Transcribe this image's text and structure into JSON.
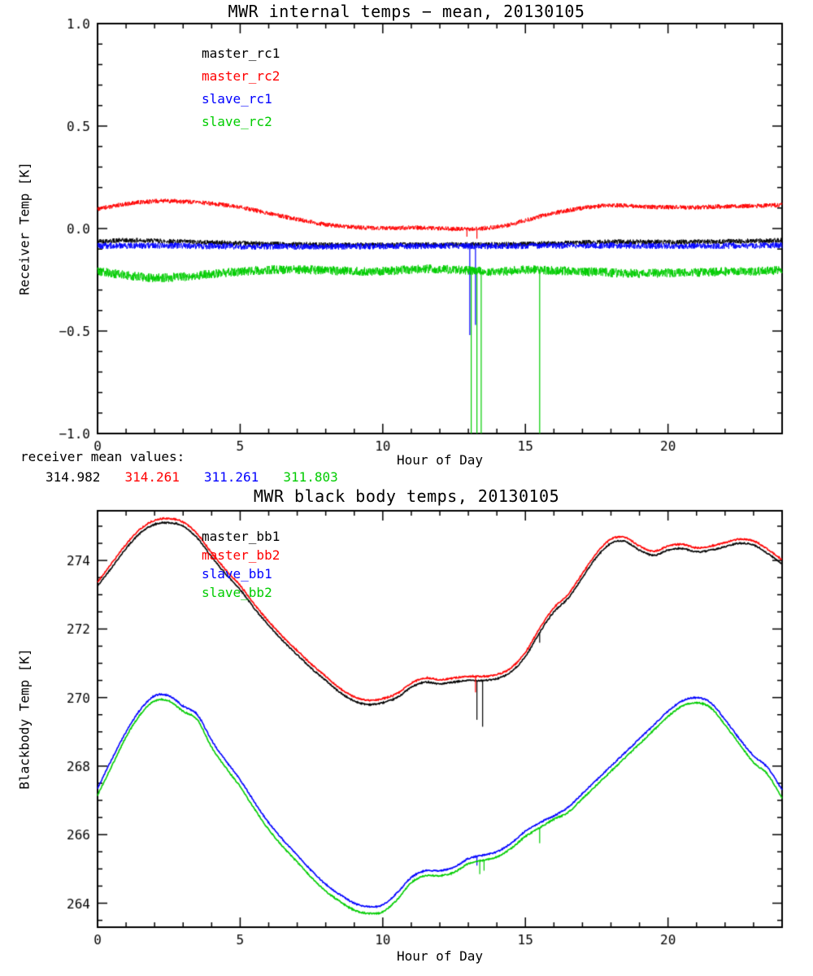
{
  "figure": {
    "background": "#ffffff",
    "axis_color": "#000000"
  },
  "mean_values": {
    "label": "receiver mean values:",
    "items": [
      {
        "value": "314.982",
        "color": "#000000"
      },
      {
        "value": "314.261",
        "color": "#ff0000"
      },
      {
        "value": "311.261",
        "color": "#0000ff"
      },
      {
        "value": "311.803",
        "color": "#00cc00"
      }
    ]
  },
  "chart_data": [
    {
      "type": "line",
      "title": "MWR internal temps − mean, 20130105",
      "xlabel": "Hour of Day",
      "ylabel": "Receiver Temp [K]",
      "xlim": [
        0,
        24
      ],
      "ylim": [
        -1.0,
        1.0
      ],
      "grid": false,
      "legend_position": "upper-left-inside",
      "xticks": {
        "major": [
          0,
          5,
          10,
          15,
          20
        ],
        "labels": [
          "0",
          "5",
          "10",
          "15",
          "20"
        ],
        "minor_step": 1
      },
      "yticks": {
        "major": [
          -1.0,
          -0.5,
          0.0,
          0.5,
          1.0
        ],
        "labels": [
          "−1.0",
          "−0.5",
          "0.0",
          "0.5",
          "1.0"
        ],
        "minor_step": 0.1
      },
      "series": [
        {
          "name": "master_rc1",
          "color": "#000000",
          "width": 1,
          "noise": 0.012,
          "step": 0.01,
          "x": [
            0,
            1,
            2,
            4,
            6,
            9,
            12,
            14,
            16,
            18,
            20,
            22,
            24
          ],
          "y": [
            -0.062,
            -0.058,
            -0.06,
            -0.068,
            -0.075,
            -0.08,
            -0.078,
            -0.078,
            -0.072,
            -0.065,
            -0.066,
            -0.063,
            -0.058
          ],
          "spikes": []
        },
        {
          "name": "master_rc2",
          "color": "#ff0000",
          "width": 1,
          "noise": 0.011,
          "step": 0.01,
          "x": [
            0,
            1,
            2,
            3,
            4,
            5,
            6,
            7,
            8,
            9,
            10,
            11,
            12,
            13,
            13.8,
            14.5,
            15,
            16,
            17,
            17.5,
            18,
            19,
            20,
            21,
            22,
            23,
            24
          ],
          "y": [
            0.095,
            0.12,
            0.133,
            0.132,
            0.122,
            0.103,
            0.075,
            0.045,
            0.02,
            0.007,
            0.002,
            0.004,
            0.0,
            -0.003,
            0.005,
            0.02,
            0.04,
            0.075,
            0.1,
            0.108,
            0.113,
            0.108,
            0.104,
            0.104,
            0.108,
            0.11,
            0.114
          ],
          "spikes": [
            [
              12.95,
              -0.04
            ],
            [
              13.3,
              -0.05
            ]
          ]
        },
        {
          "name": "slave_rc1",
          "color": "#0000ff",
          "width": 1,
          "noise": 0.015,
          "step": 0.01,
          "x": [
            0,
            2,
            4,
            6,
            8,
            10,
            12,
            14,
            16,
            18,
            20,
            22,
            24
          ],
          "y": [
            -0.085,
            -0.083,
            -0.086,
            -0.088,
            -0.088,
            -0.086,
            -0.085,
            -0.086,
            -0.084,
            -0.083,
            -0.085,
            -0.084,
            -0.082
          ],
          "spikes": [
            [
              13.05,
              -0.52
            ],
            [
              13.25,
              -0.47
            ]
          ]
        },
        {
          "name": "slave_rc2",
          "color": "#00cc00",
          "width": 1,
          "noise": 0.022,
          "step": 0.01,
          "x": [
            0,
            1,
            2,
            3,
            4,
            5,
            6,
            7,
            8,
            9,
            10,
            11,
            12,
            13,
            14,
            15,
            16,
            17,
            18,
            19,
            20,
            21,
            22,
            23,
            24
          ],
          "y": [
            -0.208,
            -0.228,
            -0.24,
            -0.235,
            -0.222,
            -0.21,
            -0.202,
            -0.2,
            -0.205,
            -0.208,
            -0.208,
            -0.2,
            -0.198,
            -0.205,
            -0.21,
            -0.202,
            -0.205,
            -0.21,
            -0.215,
            -0.22,
            -0.216,
            -0.214,
            -0.21,
            -0.208,
            -0.204
          ],
          "spikes": [
            [
              13.1,
              -1.0
            ],
            [
              13.3,
              -1.0
            ],
            [
              13.45,
              -1.0
            ],
            [
              15.5,
              -1.0
            ]
          ]
        }
      ]
    },
    {
      "type": "line",
      "title": "MWR black body temps, 20130105",
      "xlabel": "Hour of Day",
      "ylabel": "Blackbody Temp [K]",
      "xlim": [
        0,
        24
      ],
      "ylim": [
        263.3,
        275.45
      ],
      "grid": false,
      "legend_position": "upper-left-inside",
      "xticks": {
        "major": [
          0,
          5,
          10,
          15,
          20
        ],
        "labels": [
          "0",
          "5",
          "10",
          "15",
          "20"
        ],
        "minor_step": 1
      },
      "yticks": {
        "major": [
          264,
          266,
          268,
          270,
          272,
          274
        ],
        "labels": [
          "264",
          "266",
          "268",
          "270",
          "272",
          "274"
        ],
        "minor_step": 0.5
      },
      "series": [
        {
          "name": "master_bb1",
          "color": "#000000",
          "width": 1.6,
          "noise": 0.02,
          "step": 0.02,
          "x": [
            0,
            0.5,
            1,
            1.5,
            2,
            2.5,
            3,
            3.5,
            4,
            4.5,
            5,
            5.5,
            6,
            6.5,
            7,
            7.5,
            8,
            8.5,
            9,
            9.5,
            10,
            10.5,
            11,
            11.5,
            12,
            12.5,
            13,
            13.5,
            14,
            14.5,
            15,
            15.5,
            16,
            16.5,
            17,
            17.5,
            18,
            18.5,
            19,
            19.5,
            20,
            20.5,
            21,
            21.5,
            22,
            22.5,
            23,
            23.5,
            24
          ],
          "y": [
            273.25,
            273.8,
            274.35,
            274.8,
            275.05,
            275.1,
            275.0,
            274.65,
            274.1,
            273.6,
            273.15,
            272.6,
            272.1,
            271.65,
            271.25,
            270.85,
            270.5,
            270.15,
            269.9,
            269.8,
            269.85,
            270.0,
            270.3,
            270.45,
            270.4,
            270.45,
            270.5,
            270.5,
            270.55,
            270.75,
            271.2,
            271.9,
            272.5,
            272.9,
            273.5,
            274.1,
            274.5,
            274.55,
            274.3,
            274.15,
            274.3,
            274.35,
            274.25,
            274.3,
            274.4,
            274.5,
            274.45,
            274.2,
            273.9
          ],
          "spikes": [
            [
              13.3,
              269.35
            ],
            [
              13.5,
              269.15
            ],
            [
              15.5,
              271.6
            ]
          ]
        },
        {
          "name": "master_bb2",
          "color": "#ff0000",
          "width": 1.6,
          "noise": 0.02,
          "step": 0.02,
          "x": [
            0,
            0.5,
            1,
            1.5,
            2,
            2.5,
            3,
            3.5,
            4,
            4.5,
            5,
            5.5,
            6,
            6.5,
            7,
            7.5,
            8,
            8.5,
            9,
            9.5,
            10,
            10.5,
            11,
            11.5,
            12,
            12.5,
            13,
            13.5,
            14,
            14.5,
            15,
            15.5,
            16,
            16.5,
            17,
            17.5,
            18,
            18.5,
            19,
            19.5,
            20,
            20.5,
            21,
            21.5,
            22,
            22.5,
            23,
            23.5,
            24
          ],
          "y": [
            273.37,
            273.92,
            274.47,
            274.92,
            275.17,
            275.22,
            275.12,
            274.77,
            274.22,
            273.72,
            273.27,
            272.72,
            272.22,
            271.77,
            271.37,
            270.97,
            270.62,
            270.27,
            270.02,
            269.92,
            269.97,
            270.12,
            270.42,
            270.57,
            270.52,
            270.57,
            270.62,
            270.62,
            270.67,
            270.87,
            271.32,
            272.02,
            272.62,
            273.02,
            273.62,
            274.22,
            274.62,
            274.67,
            274.42,
            274.27,
            274.42,
            274.47,
            274.37,
            274.42,
            274.52,
            274.62,
            274.57,
            274.32,
            274.02
          ],
          "spikes": [
            [
              13.25,
              270.15
            ]
          ]
        },
        {
          "name": "slave_bb1",
          "color": "#0000ff",
          "width": 1.6,
          "noise": 0.02,
          "step": 0.02,
          "x": [
            0,
            0.5,
            1,
            1.5,
            2,
            2.5,
            3,
            3.5,
            4,
            4.5,
            5,
            5.5,
            6,
            6.5,
            7,
            7.5,
            8,
            8.5,
            9,
            9.5,
            10,
            10.5,
            11,
            11.5,
            12,
            12.5,
            13,
            13.5,
            14,
            14.5,
            15,
            15.5,
            16,
            16.5,
            17,
            17.5,
            18,
            18.5,
            19,
            19.5,
            20,
            20.5,
            21,
            21.5,
            22,
            22.5,
            23,
            23.5,
            24
          ],
          "y": [
            267.35,
            268.2,
            269.0,
            269.65,
            270.05,
            270.05,
            269.75,
            269.5,
            268.75,
            268.15,
            267.6,
            266.95,
            266.35,
            265.85,
            265.4,
            264.95,
            264.55,
            264.25,
            264.0,
            263.9,
            263.95,
            264.3,
            264.75,
            264.95,
            264.95,
            265.05,
            265.3,
            265.4,
            265.5,
            265.75,
            266.1,
            266.35,
            266.55,
            266.8,
            267.2,
            267.6,
            268.0,
            268.4,
            268.8,
            269.2,
            269.6,
            269.9,
            270.0,
            269.85,
            269.35,
            268.8,
            268.3,
            267.95,
            267.3
          ],
          "spikes": [
            [
              13.3,
              265.1
            ]
          ]
        },
        {
          "name": "slave_bb2",
          "color": "#00cc00",
          "width": 1.6,
          "noise": 0.02,
          "step": 0.02,
          "x": [
            0,
            0.5,
            1,
            1.5,
            2,
            2.5,
            3,
            3.5,
            4,
            4.5,
            5,
            5.5,
            6,
            6.5,
            7,
            7.5,
            8,
            8.5,
            9,
            9.5,
            10,
            10.5,
            11,
            11.5,
            12,
            12.5,
            13,
            13.5,
            14,
            14.5,
            15,
            15.5,
            16,
            16.5,
            17,
            17.5,
            18,
            18.5,
            19,
            19.5,
            20,
            20.5,
            21,
            21.5,
            22,
            22.5,
            23,
            23.5,
            24
          ],
          "y": [
            267.15,
            268.0,
            268.85,
            269.5,
            269.9,
            269.9,
            269.6,
            269.35,
            268.55,
            267.95,
            267.4,
            266.75,
            266.15,
            265.65,
            265.2,
            264.75,
            264.35,
            264.05,
            263.8,
            263.7,
            263.75,
            264.1,
            264.6,
            264.8,
            264.8,
            264.9,
            265.15,
            265.25,
            265.35,
            265.6,
            265.95,
            266.2,
            266.45,
            266.65,
            267.05,
            267.45,
            267.85,
            268.25,
            268.65,
            269.05,
            269.45,
            269.75,
            269.85,
            269.7,
            269.2,
            268.65,
            268.1,
            267.75,
            267.05
          ],
          "spikes": [
            [
              13.4,
              264.85
            ],
            [
              13.55,
              264.95
            ],
            [
              15.5,
              265.75
            ]
          ]
        }
      ]
    }
  ]
}
